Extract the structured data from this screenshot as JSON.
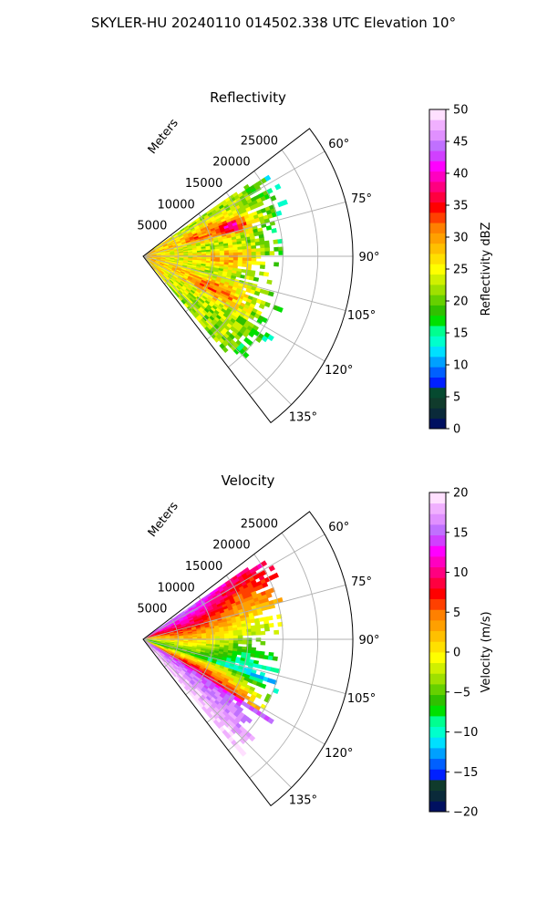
{
  "figure": {
    "suptitle": "SKYLER-HU  20240110  014502.338 UTC Elevation 10°"
  },
  "chart_data": [
    {
      "type": "heatmap",
      "subtype": "polar-sector-ppi",
      "title": "Reflectivity",
      "range_axis_label": "Meters",
      "range_ticks": [
        5000,
        10000,
        15000,
        20000,
        25000
      ],
      "range_tick_labels": [
        "5000",
        "10000",
        "15000",
        "20000",
        "25000"
      ],
      "range_max_m": 30000,
      "data_max_range_m": 22000,
      "azimuth_ticks": [
        60,
        75,
        90,
        105,
        120,
        135
      ],
      "azimuth_tick_labels": [
        "60°",
        "75°",
        "90°",
        "105°",
        "120°",
        "135°"
      ],
      "azimuth_range": [
        52.5,
        142.5
      ],
      "grid": true,
      "colorbar": {
        "label": "Reflectivity dBZ",
        "min": 0,
        "max": 50,
        "ticks": [
          0,
          5,
          10,
          15,
          20,
          25,
          30,
          35,
          40,
          45,
          50
        ],
        "tick_labels": [
          "0",
          "5",
          "10",
          "15",
          "20",
          "25",
          "30",
          "35",
          "40",
          "45",
          "50"
        ],
        "colors": [
          "#001060",
          "#0a2a3a",
          "#103b2c",
          "#064a30",
          "#0020ff",
          "#0060ff",
          "#00a0ff",
          "#00dfff",
          "#00ffcc",
          "#00ff90",
          "#00e000",
          "#30c000",
          "#66d000",
          "#9fe000",
          "#d0f000",
          "#ffff00",
          "#ffe000",
          "#ffc000",
          "#ffa000",
          "#ff8000",
          "#ff4000",
          "#ff0000",
          "#ff0040",
          "#ff0080",
          "#ff00c0",
          "#ff00ff",
          "#d040ff",
          "#c070ff",
          "#e090ff",
          "#f0b0ff",
          "#ffe0ff"
        ]
      }
    },
    {
      "type": "heatmap",
      "subtype": "polar-sector-ppi",
      "title": "Velocity",
      "range_axis_label": "Meters",
      "range_ticks": [
        5000,
        10000,
        15000,
        20000,
        25000
      ],
      "range_tick_labels": [
        "5000",
        "10000",
        "15000",
        "20000",
        "25000"
      ],
      "range_max_m": 30000,
      "data_max_range_m": 22000,
      "azimuth_ticks": [
        60,
        75,
        90,
        105,
        120,
        135
      ],
      "azimuth_tick_labels": [
        "60°",
        "75°",
        "90°",
        "105°",
        "120°",
        "135°"
      ],
      "azimuth_range": [
        52.5,
        142.5
      ],
      "grid": true,
      "colorbar": {
        "label": "Velocity (m/s)",
        "min": -20,
        "max": 20,
        "ticks": [
          -20,
          -15,
          -10,
          -5,
          0,
          5,
          10,
          15,
          20
        ],
        "tick_labels": [
          "−20",
          "−15",
          "−10",
          "−5",
          "0",
          "5",
          "10",
          "15",
          "20"
        ],
        "colors": [
          "#001060",
          "#0a2a3a",
          "#103b2c",
          "#0020ff",
          "#0060ff",
          "#00a0ff",
          "#00dfff",
          "#00ffcc",
          "#00ff90",
          "#00e000",
          "#30c000",
          "#66d000",
          "#9fe000",
          "#d0f000",
          "#ffff00",
          "#ffe000",
          "#ffc000",
          "#ffa000",
          "#ff8000",
          "#ff4000",
          "#ff0000",
          "#ff0040",
          "#ff0080",
          "#ff00c0",
          "#ff00ff",
          "#d040ff",
          "#c070ff",
          "#e090ff",
          "#f0b0ff",
          "#ffe0ff"
        ]
      }
    }
  ]
}
